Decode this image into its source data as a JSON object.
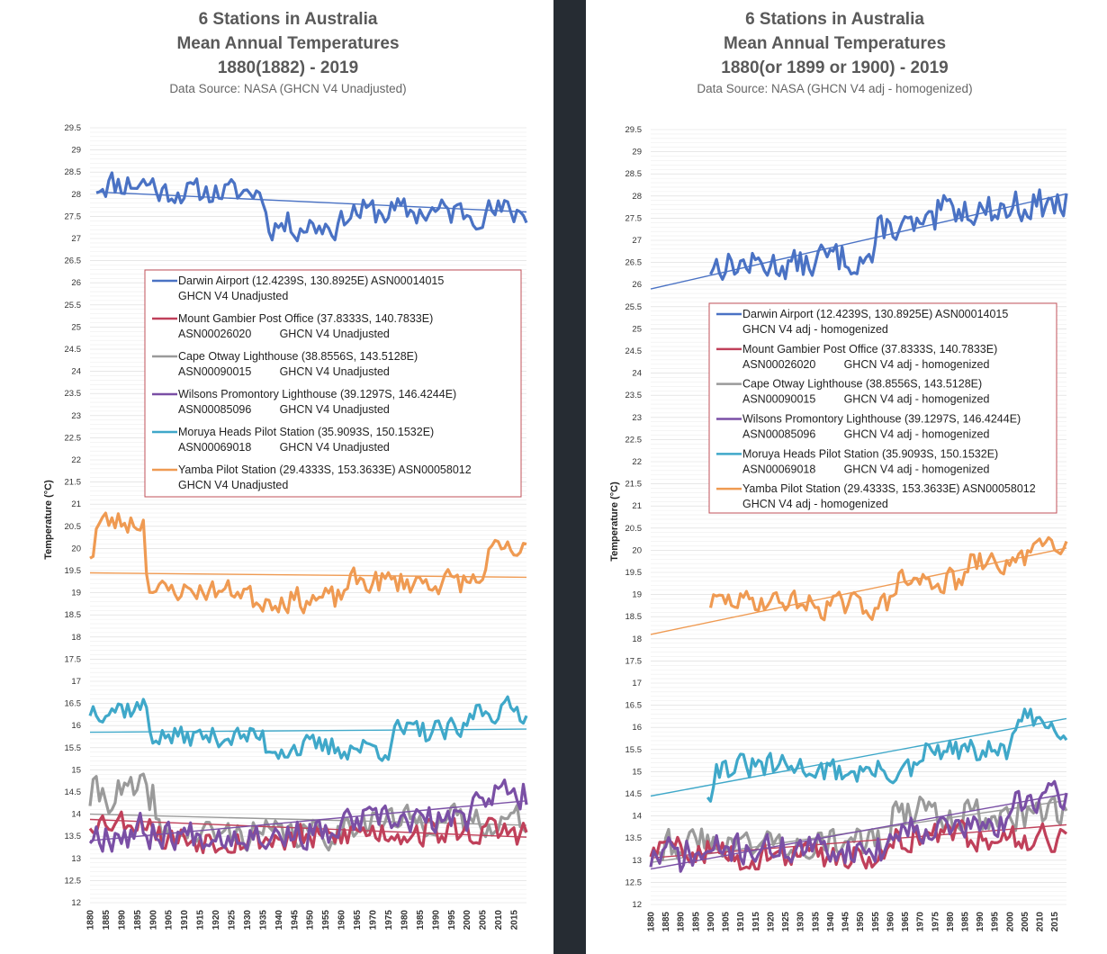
{
  "colors": {
    "darwin": "#4a72c4",
    "gambier": "#c0405a",
    "otway": "#9a9a9a",
    "wilsons": "#7a4fa5",
    "moruya": "#3fa8c9",
    "yamba": "#ef9a52",
    "divider": "#262c33"
  },
  "chart_data": [
    {
      "type": "line",
      "title": [
        "6 Stations in Australia",
        "Mean Annual Temperatures",
        "1880(1882) - 2019"
      ],
      "subtitle": "Data Source: NASA (GHCN V4 Unadjusted)",
      "ylabel": "Temperature (°C)",
      "ylim": [
        12,
        29.5
      ],
      "yticks": [
        "12",
        "12.5",
        "13",
        "13.5",
        "14",
        "14.5",
        "15",
        "15.5",
        "16",
        "16.5",
        "17",
        "17.5",
        "18",
        "18.5",
        "19",
        "19.5",
        "20",
        "20.5",
        "21",
        "21.5",
        "22",
        "22.5",
        "23",
        "23.5",
        "24",
        "24.5",
        "25",
        "25.5",
        "26",
        "26.5",
        "27",
        "27.5",
        "28",
        "28.5",
        "29",
        "29.5"
      ],
      "xlim": [
        1880,
        2019
      ],
      "xticks": [
        "1880",
        "1885",
        "1890",
        "1895",
        "1900",
        "1905",
        "1910",
        "1915",
        "1920",
        "1925",
        "1930",
        "1935",
        "1940",
        "1945",
        "1950",
        "1955",
        "1960",
        "1965",
        "1970",
        "1975",
        "1980",
        "1985",
        "1990",
        "1995",
        "2000",
        "2005",
        "2010",
        "2015"
      ],
      "legend": [
        {
          "key": "darwin",
          "line1": "Darwin Airport (12.4239S, 130.8925E) ASN00014015",
          "line2": "GHCN V4 Unadjusted"
        },
        {
          "key": "gambier",
          "line1": "Mount Gambier Post Office (37.8333S, 140.7833E)",
          "line2": "ASN00026020         GHCN V4 Unadjusted"
        },
        {
          "key": "otway",
          "line1": "Cape Otway Lighthouse (38.8556S, 143.5128E)",
          "line2": "ASN00090015         GHCN V4 Unadjusted"
        },
        {
          "key": "wilsons",
          "line1": "Wilsons Promontory Lighthouse (39.1297S, 146.4244E)",
          "line2": "ASN00085096         GHCN V4 Unadjusted"
        },
        {
          "key": "moruya",
          "line1": "Moruya Heads Pilot Station (35.9093S, 150.1532E)",
          "line2": "ASN00069018         GHCN V4 Unadjusted"
        },
        {
          "key": "yamba",
          "line1": "Yamba Pilot Station (29.4333S, 153.3633E) ASN00058012",
          "line2": "GHCN V4 Unadjusted"
        }
      ],
      "series": [
        {
          "key": "darwin",
          "start": 1882,
          "segments": [
            [
              1882,
              1900,
              28.25,
              0.35
            ],
            [
              1901,
              1935,
              28.05,
              0.3
            ],
            [
              1936,
              1960,
              27.3,
              0.35
            ],
            [
              1961,
              2019,
              27.6,
              0.35
            ]
          ],
          "trend": [
            28.05,
            27.6
          ],
          "seed": 11
        },
        {
          "key": "yamba",
          "start": 1880,
          "segments": [
            [
              1880,
              1881,
              19.9,
              0.2
            ],
            [
              1882,
              1897,
              20.6,
              0.3
            ],
            [
              1898,
              1899,
              19.2,
              0.3
            ],
            [
              1900,
              1930,
              19.05,
              0.25
            ],
            [
              1931,
              1960,
              18.85,
              0.3
            ],
            [
              1961,
              2005,
              19.25,
              0.3
            ],
            [
              2006,
              2019,
              19.9,
              0.3
            ]
          ],
          "trend": [
            19.45,
            19.35
          ],
          "seed": 23
        },
        {
          "key": "moruya",
          "start": 1880,
          "segments": [
            [
              1880,
              1898,
              16.4,
              0.3
            ],
            [
              1899,
              1935,
              15.75,
              0.25
            ],
            [
              1936,
              1975,
              15.5,
              0.3
            ],
            [
              1976,
              2000,
              15.85,
              0.3
            ],
            [
              2001,
              2019,
              16.35,
              0.3
            ]
          ],
          "trend": [
            15.85,
            15.92
          ],
          "seed": 37
        },
        {
          "key": "otway",
          "start": 1880,
          "segments": [
            [
              1880,
              1900,
              14.45,
              0.45
            ],
            [
              1901,
              1960,
              13.55,
              0.35
            ],
            [
              1961,
              2019,
              13.85,
              0.35
            ]
          ],
          "trend": [
            14.0,
            13.75
          ],
          "seed": 41
        },
        {
          "key": "gambier",
          "start": 1880,
          "segments": [
            [
              1880,
              1900,
              13.85,
              0.3
            ],
            [
              1901,
              1960,
              13.45,
              0.35
            ],
            [
              1961,
              2019,
              13.6,
              0.35
            ]
          ],
          "trend": [
            13.88,
            13.48
          ],
          "seed": 53
        },
        {
          "key": "wilsons",
          "start": 1880,
          "segments": [
            [
              1880,
              1900,
              13.6,
              0.45
            ],
            [
              1901,
              1960,
              13.55,
              0.35
            ],
            [
              1961,
              2000,
              13.85,
              0.35
            ],
            [
              2001,
              2019,
              14.45,
              0.35
            ]
          ],
          "trend": [
            13.4,
            14.3
          ],
          "seed": 67
        }
      ]
    },
    {
      "type": "line",
      "title": [
        "6 Stations in Australia",
        "Mean Annual Temperatures",
        "1880(or 1899 or 1900) - 2019"
      ],
      "subtitle": "Data Source: NASA (GHCN V4 adj - homogenized)",
      "ylabel": "Temperature (°C)",
      "ylim": [
        12,
        29.5
      ],
      "yticks": [
        "12",
        "12.5",
        "13",
        "13.5",
        "14",
        "14.5",
        "15",
        "15.5",
        "16",
        "16.5",
        "17",
        "17.5",
        "18",
        "18.5",
        "19",
        "19.5",
        "20",
        "20.5",
        "21",
        "21.5",
        "22",
        "22.5",
        "23",
        "23.5",
        "24",
        "24.5",
        "25",
        "25.5",
        "26",
        "26.5",
        "27",
        "27.5",
        "28",
        "28.5",
        "29",
        "29.5"
      ],
      "xlim": [
        1880,
        2019
      ],
      "xticks": [
        "1880",
        "1885",
        "1890",
        "1895",
        "1900",
        "1905",
        "1910",
        "1915",
        "1920",
        "1925",
        "1930",
        "1935",
        "1940",
        "1945",
        "1950",
        "1955",
        "1960",
        "1965",
        "1970",
        "1975",
        "1980",
        "1985",
        "1990",
        "1995",
        "2000",
        "2005",
        "2010",
        "2015"
      ],
      "legend": [
        {
          "key": "darwin",
          "line1": "Darwin Airport (12.4239S, 130.8925E) ASN00014015",
          "line2": "GHCN V4 adj - homogenized"
        },
        {
          "key": "gambier",
          "line1": "Mount Gambier Post Office (37.8333S, 140.7833E)",
          "line2": "ASN00026020         GHCN V4 adj - homogenized"
        },
        {
          "key": "otway",
          "line1": "Cape Otway Lighthouse (38.8556S, 143.5128E)",
          "line2": "ASN00090015         GHCN V4 adj - homogenized"
        },
        {
          "key": "wilsons",
          "line1": "Wilsons Promontory Lighthouse (39.1297S, 146.4244E)",
          "line2": "ASN00085096         GHCN V4 adj - homogenized"
        },
        {
          "key": "moruya",
          "line1": "Moruya Heads Pilot Station (35.9093S, 150.1532E)",
          "line2": "ASN00069018         GHCN V4 adj - homogenized"
        },
        {
          "key": "yamba",
          "line1": "Yamba Pilot Station (29.4333S, 153.3633E) ASN00058012",
          "line2": "GHCN V4 adj - homogenized"
        }
      ],
      "series": [
        {
          "key": "darwin",
          "start": 1900,
          "segments": [
            [
              1900,
              1935,
              26.45,
              0.35
            ],
            [
              1936,
              1955,
              26.6,
              0.4
            ],
            [
              1956,
              1975,
              27.3,
              0.35
            ],
            [
              1976,
              2000,
              27.7,
              0.35
            ],
            [
              2001,
              2019,
              27.8,
              0.4
            ]
          ],
          "trend": [
            25.9,
            28.05
          ],
          "trendStart": 1880,
          "seed": 13
        },
        {
          "key": "yamba",
          "start": 1900,
          "segments": [
            [
              1900,
              1930,
              18.85,
              0.25
            ],
            [
              1931,
              1960,
              18.75,
              0.3
            ],
            [
              1961,
              1985,
              19.3,
              0.3
            ],
            [
              1986,
              2005,
              19.7,
              0.3
            ],
            [
              2006,
              2019,
              20.2,
              0.25
            ]
          ],
          "trend": [
            18.1,
            20.05
          ],
          "trendStart": 1880,
          "seed": 29
        },
        {
          "key": "moruya",
          "start": 1899,
          "segments": [
            [
              1899,
              1900,
              14.6,
              0.3
            ],
            [
              1901,
              1935,
              15.1,
              0.3
            ],
            [
              1936,
              1970,
              15.0,
              0.3
            ],
            [
              1971,
              2000,
              15.45,
              0.3
            ],
            [
              2001,
              2019,
              16.1,
              0.35
            ]
          ],
          "trend": [
            14.45,
            16.2
          ],
          "trendStart": 1880,
          "seed": 31
        },
        {
          "key": "otway",
          "start": 1880,
          "segments": [
            [
              1880,
              1900,
              13.4,
              0.4
            ],
            [
              1901,
              1960,
              13.4,
              0.35
            ],
            [
              1961,
              2019,
              14.05,
              0.4
            ]
          ],
          "trend": [
            12.95,
            14.35
          ],
          "seed": 43
        },
        {
          "key": "gambier",
          "start": 1880,
          "segments": [
            [
              1880,
              1900,
              13.25,
              0.3
            ],
            [
              1901,
              1960,
              13.1,
              0.35
            ],
            [
              1961,
              2019,
              13.55,
              0.35
            ]
          ],
          "trend": [
            13.05,
            13.8
          ],
          "seed": 59
        },
        {
          "key": "wilsons",
          "start": 1880,
          "segments": [
            [
              1880,
              1900,
              13.1,
              0.45
            ],
            [
              1901,
              1960,
              13.25,
              0.35
            ],
            [
              1961,
              2000,
              13.75,
              0.35
            ],
            [
              2001,
              2019,
              14.4,
              0.35
            ]
          ],
          "trend": [
            12.8,
            14.5
          ],
          "seed": 71
        }
      ]
    }
  ]
}
